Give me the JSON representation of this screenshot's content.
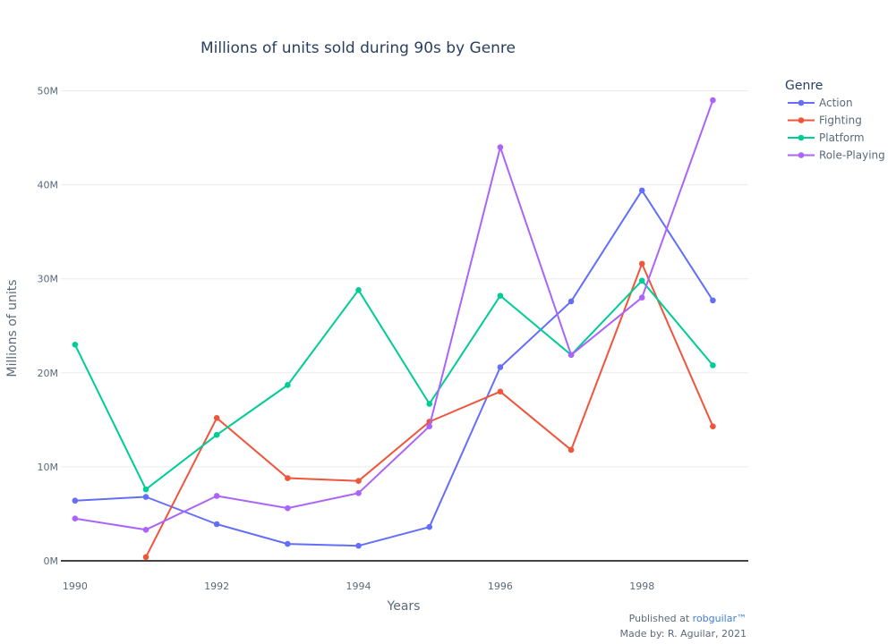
{
  "chart_data": {
    "type": "line",
    "title": "Millions of units sold during 90s by Genre",
    "xlabel": "Years",
    "ylabel": "Millions of units",
    "xlim": [
      1989.8,
      1999.5
    ],
    "ylim": [
      0,
      51
    ],
    "x_ticks": [
      1990,
      1992,
      1994,
      1996,
      1998
    ],
    "x_tick_labels": [
      "1990",
      "1992",
      "1994",
      "1996",
      "1998"
    ],
    "y_ticks": [
      0,
      10,
      20,
      30,
      40,
      50
    ],
    "y_tick_labels": [
      "0M",
      "10M",
      "20M",
      "30M",
      "40M",
      "50M"
    ],
    "grid": true,
    "legend": {
      "title": "Genre",
      "position": "top-right"
    },
    "series": [
      {
        "name": "Action",
        "color": "#636efa",
        "points": [
          [
            1990,
            6.4
          ],
          [
            1991,
            6.8
          ],
          [
            1992,
            3.9
          ],
          [
            1993,
            1.8
          ],
          [
            1994,
            1.6
          ],
          [
            1995,
            3.6
          ],
          [
            1996,
            20.6
          ],
          [
            1997,
            27.6
          ],
          [
            1998,
            39.4
          ],
          [
            1999,
            27.7
          ]
        ]
      },
      {
        "name": "Fighting",
        "color": "#ef553b",
        "points": [
          [
            1991,
            0.4
          ],
          [
            1992,
            15.2
          ],
          [
            1993,
            8.8
          ],
          [
            1994,
            8.5
          ],
          [
            1995,
            14.8
          ],
          [
            1996,
            18.0
          ],
          [
            1997,
            11.8
          ],
          [
            1998,
            31.6
          ],
          [
            1999,
            14.3
          ]
        ]
      },
      {
        "name": "Platform",
        "color": "#00cc96",
        "points": [
          [
            1990,
            23.0
          ],
          [
            1991,
            7.6
          ],
          [
            1992,
            13.4
          ],
          [
            1993,
            18.7
          ],
          [
            1994,
            28.8
          ],
          [
            1995,
            16.7
          ],
          [
            1996,
            28.2
          ],
          [
            1997,
            21.9
          ],
          [
            1998,
            29.8
          ],
          [
            1999,
            20.8
          ]
        ]
      },
      {
        "name": "Role-Playing",
        "color": "#ab63fa",
        "points": [
          [
            1990,
            4.5
          ],
          [
            1991,
            3.3
          ],
          [
            1992,
            6.9
          ],
          [
            1993,
            5.6
          ],
          [
            1994,
            7.2
          ],
          [
            1995,
            14.3
          ],
          [
            1996,
            44.0
          ],
          [
            1997,
            21.9
          ],
          [
            1998,
            28.0
          ],
          [
            1999,
            49.0
          ]
        ]
      }
    ]
  },
  "footer": {
    "published_prefix": "Published at ",
    "published_link": "robguilar™",
    "made_by": "Made by: R. Aguilar, 2021"
  }
}
